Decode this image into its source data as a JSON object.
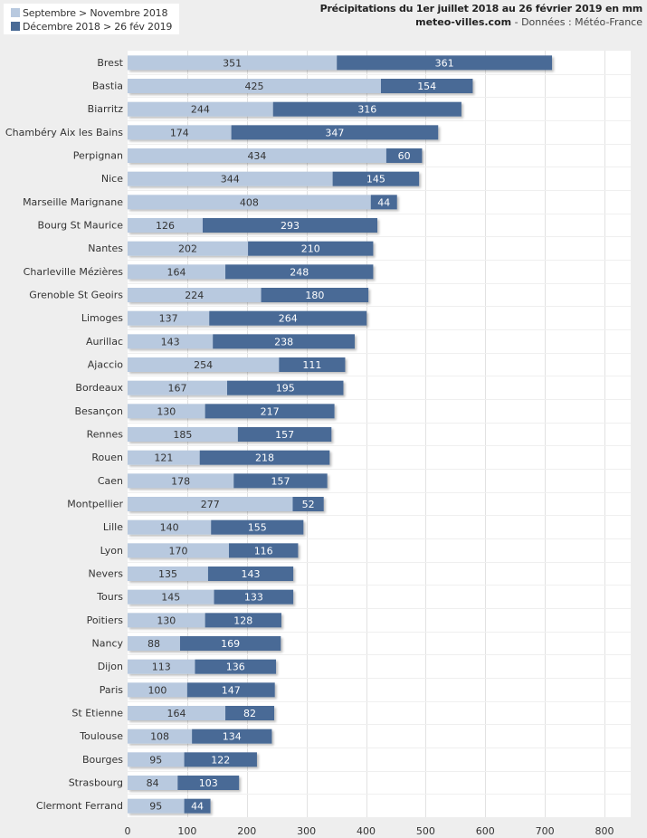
{
  "header": {
    "title": "Précipitations du 1er juillet 2018 au 26 février 2019 en mm",
    "site": "meteo-villes.com",
    "source_sep": " - ",
    "source": "Données : Météo-France"
  },
  "chart_data": {
    "type": "bar",
    "orientation": "horizontal",
    "stacked": true,
    "title": "Précipitations du 1er juillet 2018 au 26 février 2019 en mm",
    "subtitle": "meteo-villes.com - Données : Météo-France",
    "xlabel": "",
    "ylabel": "",
    "xlim": [
      0,
      844
    ],
    "xticks": [
      0,
      100,
      200,
      300,
      400,
      500,
      600,
      700,
      800
    ],
    "grid": true,
    "legend_position": "top-left",
    "colors": {
      "series1": "#b8c9df",
      "series2": "#4a6b96"
    },
    "categories": [
      "Brest",
      "Bastia",
      "Biarritz",
      "Chambéry Aix les Bains",
      "Perpignan",
      "Nice",
      "Marseille Marignane",
      "Bourg St Maurice",
      "Nantes",
      "Charleville Mézières",
      "Grenoble St Geoirs",
      "Limoges",
      "Aurillac",
      "Ajaccio",
      "Bordeaux",
      "Besançon",
      "Rennes",
      "Rouen",
      "Caen",
      "Montpellier",
      "Lille",
      "Lyon",
      "Nevers",
      "Tours",
      "Poitiers",
      "Nancy",
      "Dijon",
      "Paris",
      "St Etienne",
      "Toulouse",
      "Bourges",
      "Strasbourg",
      "Clermont Ferrand"
    ],
    "series": [
      {
        "name": "Septembre > Novembre 2018",
        "values": [
          351,
          425,
          244,
          174,
          434,
          344,
          408,
          126,
          202,
          164,
          224,
          137,
          143,
          254,
          167,
          130,
          185,
          121,
          178,
          277,
          140,
          170,
          135,
          145,
          130,
          88,
          113,
          100,
          164,
          108,
          95,
          84,
          95
        ]
      },
      {
        "name": "Décembre 2018 > 26 fév 2019",
        "values": [
          361,
          154,
          316,
          347,
          60,
          145,
          44,
          293,
          210,
          248,
          180,
          264,
          238,
          111,
          195,
          217,
          157,
          218,
          157,
          52,
          155,
          116,
          143,
          133,
          128,
          169,
          136,
          147,
          82,
          134,
          122,
          103,
          44
        ]
      }
    ]
  }
}
